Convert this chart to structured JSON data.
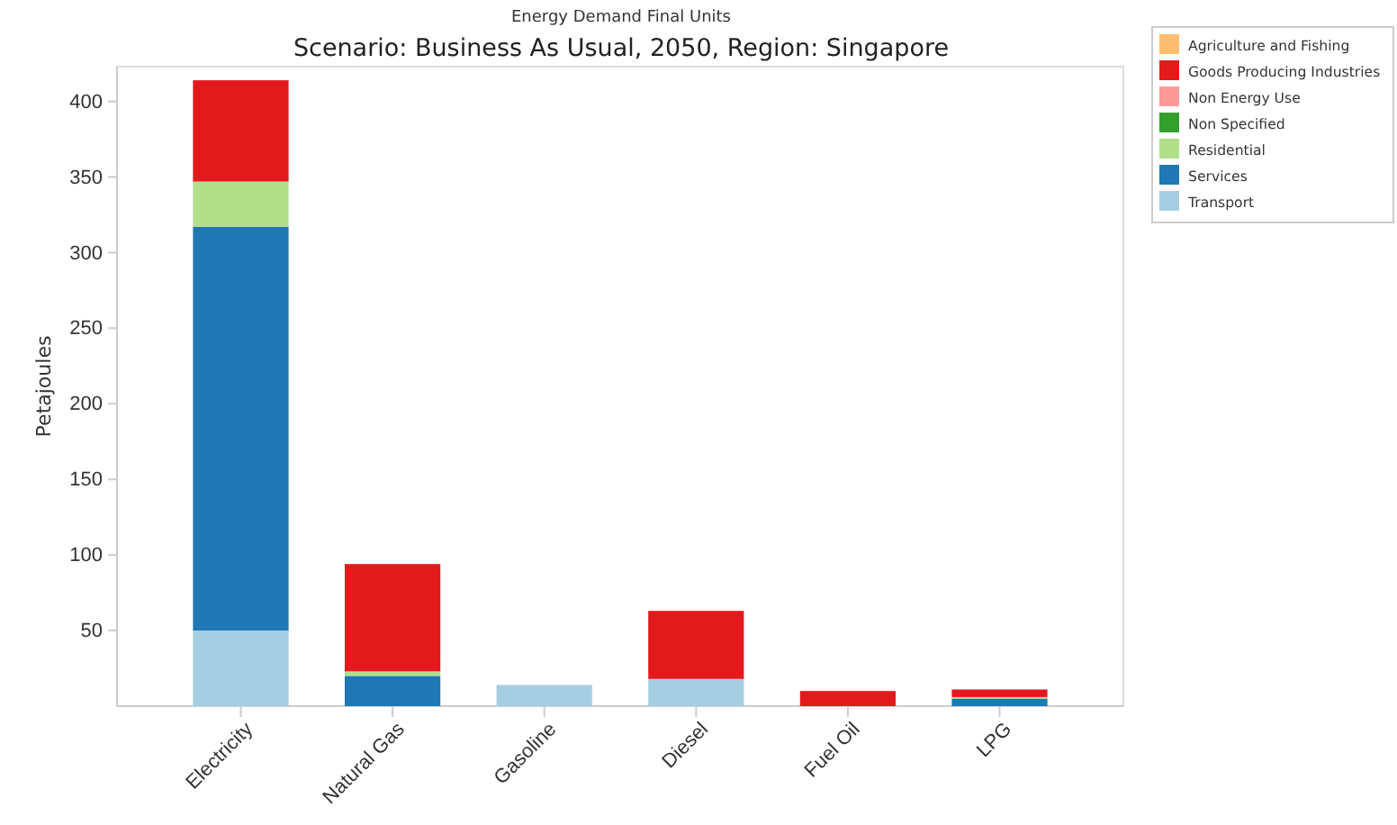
{
  "chart_data": {
    "type": "bar",
    "title": "Energy Demand Final Units",
    "subtitle": "Scenario: Business As Usual, 2050, Region: Singapore",
    "ylabel": "Petajoules",
    "categories": [
      "Electricity",
      "Natural Gas",
      "Gasoline",
      "Diesel",
      "Fuel Oil",
      "LPG"
    ],
    "stacked": true,
    "ylim": [
      0,
      423
    ],
    "yticks": [
      50,
      100,
      150,
      200,
      250,
      300,
      350,
      400
    ],
    "grid": false,
    "legend": "right",
    "series": [
      {
        "name": "Transport",
        "color": "#a6cee3",
        "values": [
          50,
          0,
          14,
          18,
          0,
          0
        ]
      },
      {
        "name": "Services",
        "color": "#1f78b4",
        "values": [
          267,
          20,
          0,
          0,
          0,
          5
        ]
      },
      {
        "name": "Residential",
        "color": "#b2df8a",
        "values": [
          30,
          3,
          0,
          0,
          0,
          1
        ]
      },
      {
        "name": "Non Specified",
        "color": "#33a02c",
        "values": [
          0,
          0,
          0,
          0,
          0,
          0
        ]
      },
      {
        "name": "Non Energy Use",
        "color": "#fb9a99",
        "values": [
          0,
          0,
          0,
          0,
          0,
          0
        ]
      },
      {
        "name": "Goods Producing Industries",
        "color": "#e31a1c",
        "values": [
          67,
          71,
          0,
          45,
          10,
          5
        ]
      },
      {
        "name": "Agriculture and Fishing",
        "color": "#fdbf6f",
        "values": [
          0,
          0,
          0,
          0,
          0,
          0
        ]
      }
    ]
  }
}
